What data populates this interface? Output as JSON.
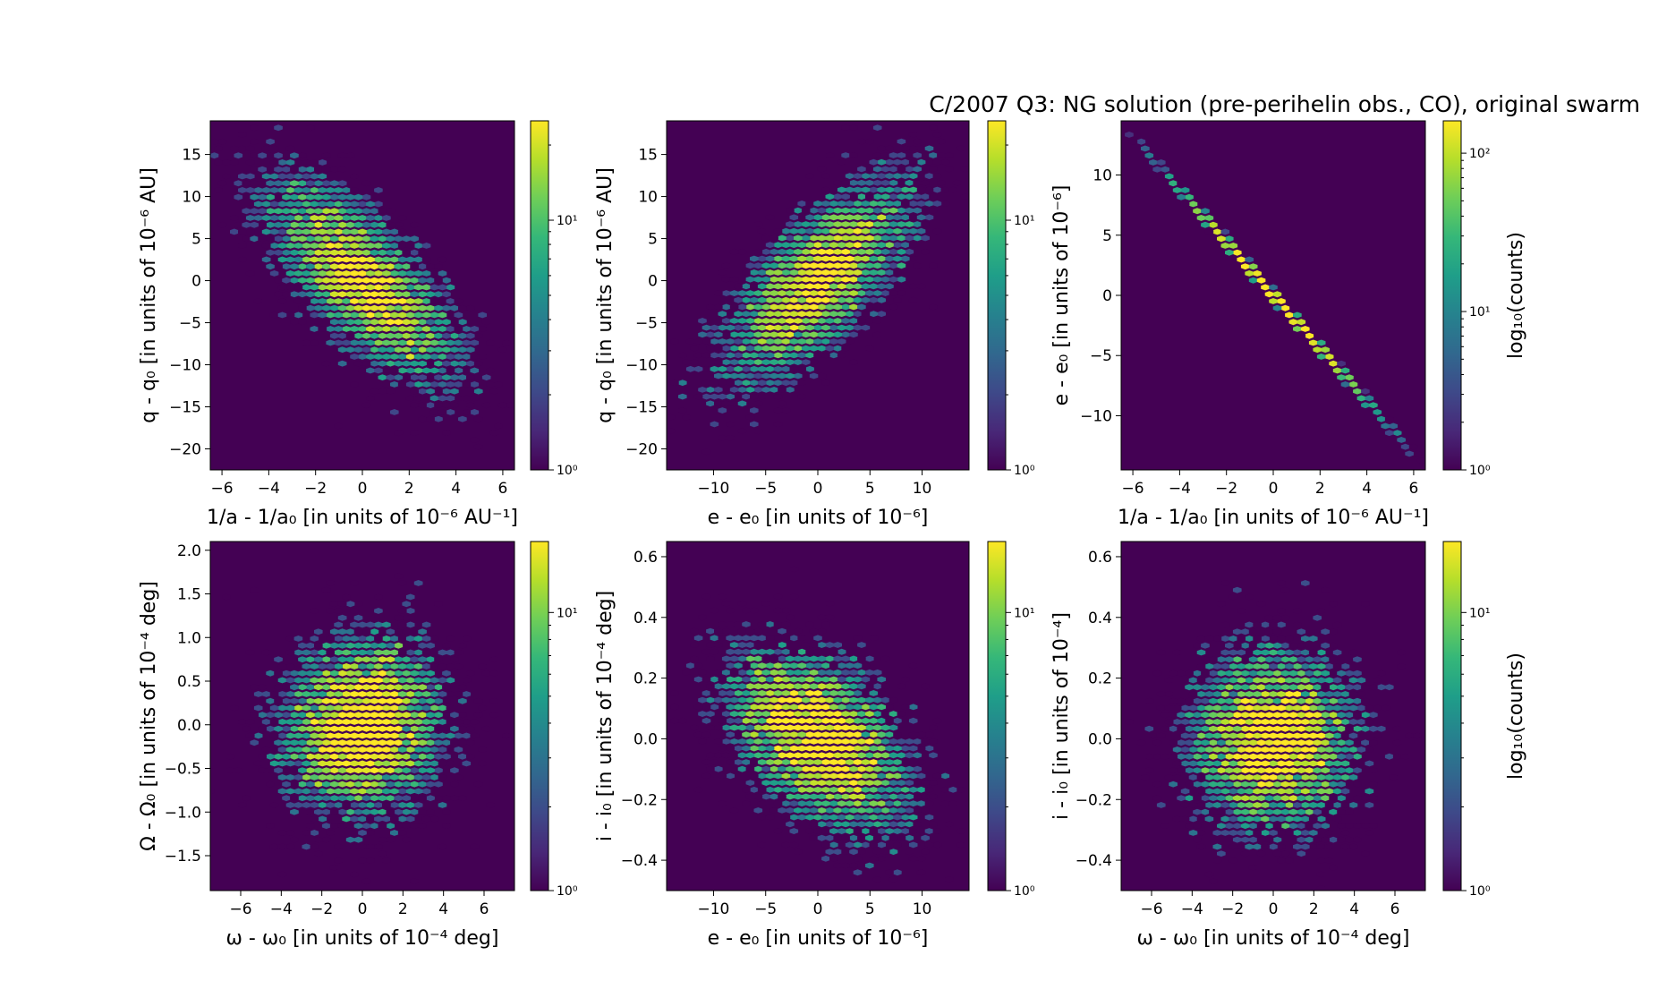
{
  "figure": {
    "title": "C/2007 Q3:  NG solution (pre-perihelin obs., CO), original swarm",
    "colormap": "viridis",
    "background": "#ffffff",
    "plot_background": "#440154"
  },
  "chart_data": [
    {
      "type": "heatmap",
      "subtype": "hexbin",
      "xlabel": "1/a - 1/a₀ [in units of 10⁻⁶ AU⁻¹]",
      "ylabel": "q - q₀ [in units of 10⁻⁶ AU]",
      "xlim": [
        -6.5,
        6.5
      ],
      "ylim": [
        -22.5,
        19
      ],
      "xticks": [
        -6,
        -4,
        -2,
        0,
        2,
        4,
        6
      ],
      "yticks": [
        -20,
        -15,
        -10,
        -5,
        0,
        5,
        10,
        15
      ],
      "xtick_labels": [
        "−6",
        "−4",
        "−2",
        "0",
        "2",
        "4",
        "6"
      ],
      "ytick_labels": [
        "−20",
        "−15",
        "−10",
        "−5",
        "0",
        "5",
        "10",
        "15"
      ],
      "distribution": {
        "mean": [
          0,
          0
        ],
        "sd": [
          2.0,
          6.0
        ],
        "correlation": -0.72,
        "n_points": 5000
      },
      "colorbar": {
        "scale": "log",
        "range": [
          1,
          25
        ],
        "ticks": [
          1,
          10
        ],
        "tick_labels": [
          "10⁰",
          "10¹"
        ],
        "label": ""
      }
    },
    {
      "type": "heatmap",
      "subtype": "hexbin",
      "xlabel": "e - e₀ [in units of 10⁻⁶]",
      "ylabel": "q - q₀ [in units of 10⁻⁶ AU]",
      "xlim": [
        -14.5,
        14.5
      ],
      "ylim": [
        -22.5,
        19
      ],
      "xticks": [
        -10,
        -5,
        0,
        5,
        10
      ],
      "yticks": [
        -20,
        -15,
        -10,
        -5,
        0,
        5,
        10,
        15
      ],
      "xtick_labels": [
        "−10",
        "−5",
        "0",
        "5",
        "10"
      ],
      "ytick_labels": [
        "−20",
        "−15",
        "−10",
        "−5",
        "0",
        "5",
        "10",
        "15"
      ],
      "distribution": {
        "mean": [
          0,
          0
        ],
        "sd": [
          4.5,
          6.0
        ],
        "correlation": 0.72,
        "n_points": 5000
      },
      "colorbar": {
        "scale": "log",
        "range": [
          1,
          25
        ],
        "ticks": [
          1,
          10
        ],
        "tick_labels": [
          "10⁰",
          "10¹"
        ],
        "label": ""
      }
    },
    {
      "type": "heatmap",
      "subtype": "hexbin",
      "xlabel": "1/a - 1/a₀ [in units of 10⁻⁶ AU⁻¹]",
      "ylabel": "e - e₀ [in units of 10⁻⁶]",
      "xlim": [
        -6.5,
        6.5
      ],
      "ylim": [
        -14.5,
        14.5
      ],
      "xticks": [
        -6,
        -4,
        -2,
        0,
        2,
        4,
        6
      ],
      "yticks": [
        -10,
        -5,
        0,
        5,
        10
      ],
      "xtick_labels": [
        "−6",
        "−4",
        "−2",
        "0",
        "2",
        "4",
        "6"
      ],
      "ytick_labels": [
        "−10",
        "−5",
        "0",
        "5",
        "10"
      ],
      "distribution": {
        "mean": [
          0,
          0
        ],
        "sd": [
          2.0,
          4.4
        ],
        "correlation": -0.9999,
        "n_points": 5000
      },
      "colorbar": {
        "scale": "log",
        "range": [
          1,
          160
        ],
        "ticks": [
          1,
          10,
          100
        ],
        "tick_labels": [
          "10⁰",
          "10¹",
          "10²"
        ],
        "label": "log₁₀(counts)"
      }
    },
    {
      "type": "heatmap",
      "subtype": "hexbin",
      "xlabel": "ω - ω₀ [in units of 10⁻⁴ deg]",
      "ylabel": "Ω - Ω₀ [in units of 10⁻⁴ deg]",
      "xlim": [
        -7.5,
        7.5
      ],
      "ylim": [
        -1.9,
        2.1
      ],
      "xticks": [
        -6,
        -4,
        -2,
        0,
        2,
        4,
        6
      ],
      "yticks": [
        -1.5,
        -1.0,
        -0.5,
        0.0,
        0.5,
        1.0,
        1.5,
        2.0
      ],
      "xtick_labels": [
        "−6",
        "−4",
        "−2",
        "0",
        "2",
        "4",
        "6"
      ],
      "ytick_labels": [
        "−1.5",
        "−1.0",
        "−0.5",
        "0.0",
        "0.5",
        "1.0",
        "1.5",
        "2.0"
      ],
      "distribution": {
        "mean": [
          0,
          0
        ],
        "sd": [
          2.0,
          0.5
        ],
        "correlation": 0.1,
        "n_points": 5000
      },
      "colorbar": {
        "scale": "log",
        "range": [
          1,
          18
        ],
        "ticks": [
          1,
          10
        ],
        "tick_labels": [
          "10⁰",
          "10¹"
        ],
        "label": ""
      }
    },
    {
      "type": "heatmap",
      "subtype": "hexbin",
      "xlabel": "e - e₀ [in units of 10⁻⁶]",
      "ylabel": "i - i₀ [in units of 10⁻⁴ deg]",
      "xlim": [
        -14.5,
        14.5
      ],
      "ylim": [
        -0.5,
        0.65
      ],
      "xticks": [
        -10,
        -5,
        0,
        5,
        10
      ],
      "yticks": [
        -0.4,
        -0.2,
        0.0,
        0.2,
        0.4,
        0.6
      ],
      "xtick_labels": [
        "−10",
        "−5",
        "0",
        "5",
        "10"
      ],
      "ytick_labels": [
        "−0.4",
        "−0.2",
        "0.0",
        "0.2",
        "0.4",
        "0.6"
      ],
      "distribution": {
        "mean": [
          0,
          0
        ],
        "sd": [
          4.4,
          0.15
        ],
        "correlation": -0.45,
        "n_points": 5000
      },
      "colorbar": {
        "scale": "log",
        "range": [
          1,
          18
        ],
        "ticks": [
          1,
          10
        ],
        "tick_labels": [
          "10⁰",
          "10¹"
        ],
        "label": ""
      }
    },
    {
      "type": "heatmap",
      "subtype": "hexbin",
      "xlabel": "ω - ω₀ [in units of 10⁻⁴ deg]",
      "ylabel": "i - i₀ [in units of 10⁻⁴]",
      "xlim": [
        -7.5,
        7.5
      ],
      "ylim": [
        -0.5,
        0.65
      ],
      "xticks": [
        -6,
        -4,
        -2,
        0,
        2,
        4,
        6
      ],
      "yticks": [
        -0.4,
        -0.2,
        0.0,
        0.2,
        0.4,
        0.6
      ],
      "xtick_labels": [
        "−6",
        "−4",
        "−2",
        "0",
        "2",
        "4",
        "6"
      ],
      "ytick_labels": [
        "−0.4",
        "−0.2",
        "0.0",
        "0.2",
        "0.4",
        "0.6"
      ],
      "distribution": {
        "mean": [
          0,
          0
        ],
        "sd": [
          2.0,
          0.15
        ],
        "correlation": 0.0,
        "n_points": 5000
      },
      "colorbar": {
        "scale": "log",
        "range": [
          1,
          18
        ],
        "ticks": [
          1,
          10
        ],
        "tick_labels": [
          "10⁰",
          "10¹"
        ],
        "label": "log₁₀(counts)"
      }
    }
  ]
}
